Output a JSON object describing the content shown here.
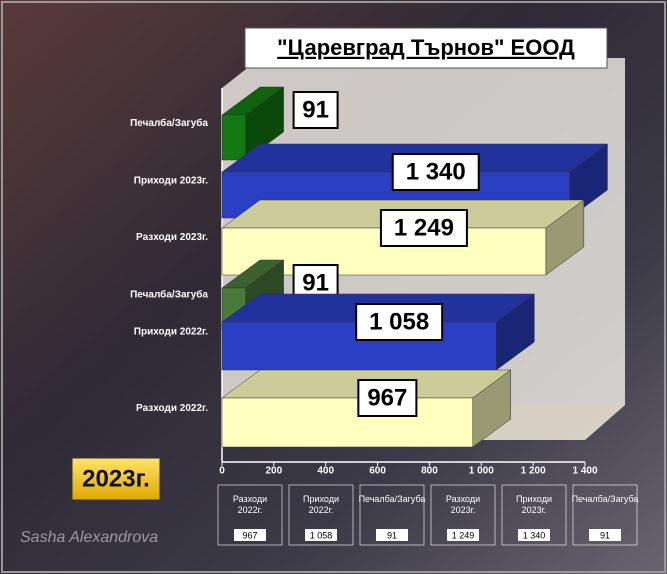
{
  "chart_data": {
    "type": "bar3d",
    "title": "\"Царевград Търнов\" ЕООД",
    "badge": "2023г.",
    "credit": "Sasha Alexandrova",
    "categories": [
      "Печалба/Загуба",
      "Приходи 2023г.",
      "Разходи  2023г.",
      "Печалба/Загуба",
      "Приходи 2022г.",
      "Разходи  2022г."
    ],
    "values": [
      91,
      1340,
      1249,
      91,
      1058,
      967
    ],
    "value_labels": [
      "91",
      "1 340",
      "1 249",
      "91",
      "1 058",
      "967"
    ],
    "colors": [
      "#137a13",
      "#2a3fc4",
      "#ffffc0",
      "#4a7a3a",
      "#2a3fc4",
      "#ffffc0"
    ],
    "xlim": [
      0,
      1400
    ],
    "xticks": [
      0,
      200,
      400,
      600,
      800,
      {
        "value": 1000,
        "label": "1 000"
      },
      {
        "value": 1200,
        "label": "1 200"
      },
      {
        "value": 1400,
        "label": "1 400"
      }
    ],
    "table_order": [
      5,
      4,
      3,
      2,
      1,
      0
    ]
  }
}
